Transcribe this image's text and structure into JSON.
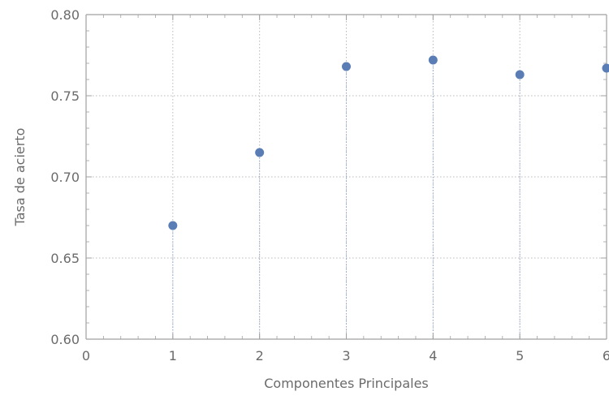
{
  "chart_data": {
    "type": "scatter",
    "title": "",
    "xlabel": "Componentes Principales",
    "ylabel": "Tasa de acierto",
    "xlim": [
      0,
      6
    ],
    "ylim": [
      0.6,
      0.8
    ],
    "x_ticks": [
      "0",
      "1",
      "2",
      "3",
      "4",
      "5",
      "6"
    ],
    "y_ticks": [
      "0.60",
      "0.65",
      "0.70",
      "0.75",
      "0.80"
    ],
    "grid": "on",
    "drop_lines": true,
    "colors": {
      "point": "#5a7db5",
      "axis": "#a0a0a0",
      "grid": "#b8b8b8",
      "drop_line": "#8fa6cf",
      "text": "#6b6b6b"
    },
    "points": [
      {
        "x": 1,
        "y": 0.67
      },
      {
        "x": 2,
        "y": 0.715
      },
      {
        "x": 3,
        "y": 0.768
      },
      {
        "x": 4,
        "y": 0.772
      },
      {
        "x": 5,
        "y": 0.763
      },
      {
        "x": 6,
        "y": 0.767
      }
    ]
  }
}
